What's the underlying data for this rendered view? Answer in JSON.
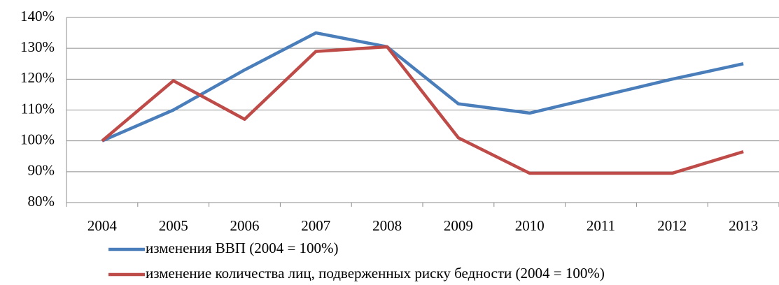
{
  "chart_data": {
    "type": "line",
    "categories": [
      "2004",
      "2005",
      "2006",
      "2007",
      "2008",
      "2009",
      "2010",
      "2011",
      "2012",
      "2013"
    ],
    "series": [
      {
        "name": "изменения ВВП (2004 = 100%)",
        "color": "#4a7ebb",
        "values": [
          100,
          110,
          123,
          135,
          130.5,
          112,
          109,
          114.5,
          120,
          125
        ]
      },
      {
        "name": "изменение количества лиц, подверженных риску бедности (2004 = 100%)",
        "color": "#be4b48",
        "values": [
          100,
          119.5,
          107,
          129,
          130.5,
          101,
          89.5,
          89.5,
          89.5,
          96.5
        ]
      }
    ],
    "ylim": [
      80,
      140
    ],
    "yticks": [
      {
        "value": 80,
        "label": "80%"
      },
      {
        "value": 90,
        "label": "90%"
      },
      {
        "value": 100,
        "label": "100%"
      },
      {
        "value": 110,
        "label": "110%"
      },
      {
        "value": 120,
        "label": "120%"
      },
      {
        "value": 130,
        "label": "130%"
      },
      {
        "value": 140,
        "label": "140%"
      }
    ],
    "grid": true,
    "legend": "bottom"
  }
}
